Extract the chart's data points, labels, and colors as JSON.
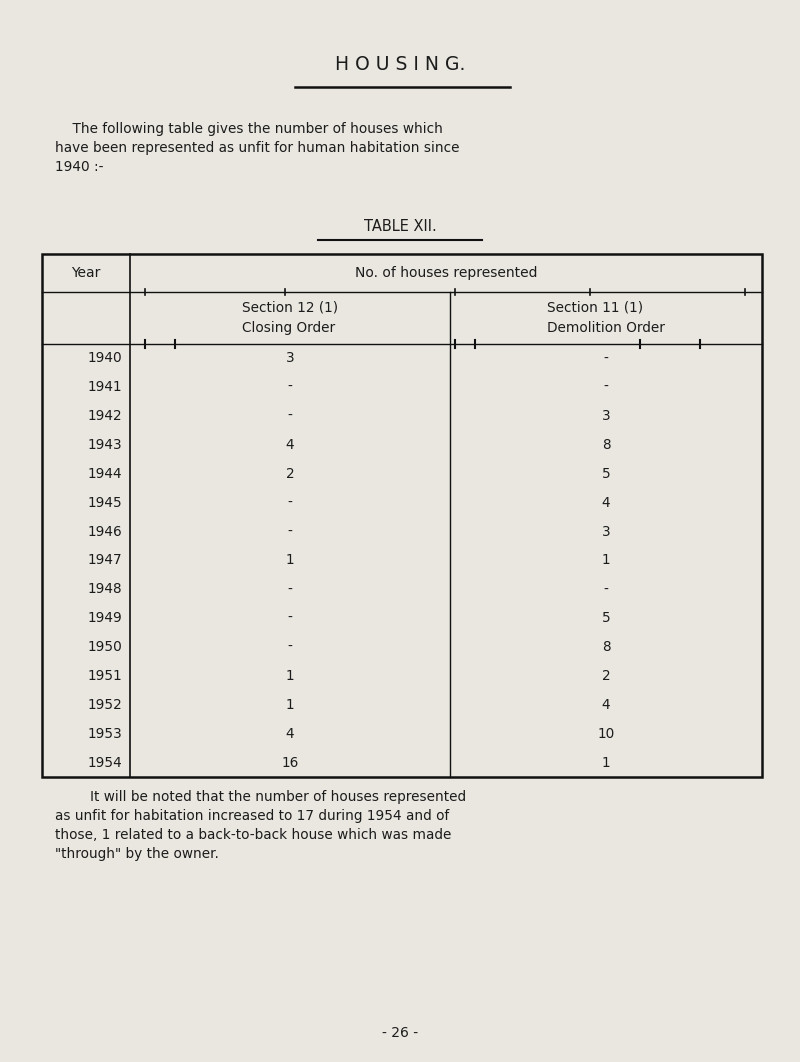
{
  "background_color": "#e9e7e0",
  "title": "H O U S I N G.",
  "intro_text_line1": "    The following table gives the number of houses which",
  "intro_text_line2": "have been represented as unfit for human habitation since",
  "intro_text_line3": "1940 :-",
  "table_title": "TABLE XII.",
  "col_header_year": "Year",
  "col_header_no": "No. of houses represented",
  "col_header_sec12": "Section 12 (1)\nClosing Order",
  "col_header_sec11": "Section 11 (1)\nDemolition Order",
  "years": [
    "1940",
    "1941",
    "1942",
    "1943",
    "1944",
    "1945",
    "1946",
    "1947",
    "1948",
    "1949",
    "1950",
    "1951",
    "1952",
    "1953",
    "1954"
  ],
  "sec12": [
    "3",
    "-",
    "-",
    "4",
    "2",
    "-",
    "-",
    "1",
    "-",
    "-",
    "-",
    "1",
    "1",
    "4",
    "16"
  ],
  "sec11": [
    "-",
    "-",
    "3",
    "8",
    "5",
    "4",
    "3",
    "1",
    "-",
    "5",
    "8",
    "2",
    "4",
    "10",
    "1"
  ],
  "footer_indent": "        It will be noted that the number of houses represented",
  "footer_line2": "as unfit for habitation increased to 17 during 1954 and of",
  "footer_line3": "those, 1 related to a back-to-back house which was made",
  "footer_line4": "\"through\" by the owner.",
  "page_number": "- 26 -",
  "text_color": "#1c1c1c",
  "line_color": "#111111",
  "font_family": "Courier New"
}
